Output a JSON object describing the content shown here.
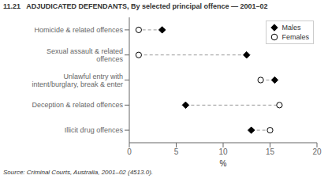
{
  "chart_data": {
    "type": "dumbbell",
    "title": "11.21   ADJUDICATED DEFENDANTS, By selected principal offence — 2001–02",
    "categories": [
      "Homicide & related offences",
      "Sexual assault & related offences",
      "Unlawful entry with intent/burglary, break & enter",
      "Deception & related offences",
      "Illicit drug offences"
    ],
    "series": [
      {
        "name": "Males",
        "values": [
          3.5,
          12.5,
          15.5,
          6.0,
          13.0
        ],
        "color": "black",
        "marker": "diamond"
      },
      {
        "name": "Females",
        "values": [
          1.0,
          1.0,
          14.0,
          16.0,
          15.0
        ],
        "color": "white",
        "marker": "circle"
      }
    ],
    "xlim": [
      0,
      20
    ],
    "xticks": [
      0,
      5,
      10,
      15,
      20
    ],
    "xlabel": "%",
    "source": "Source: Criminal Courts, Australia, 2001–02 (4513.0).",
    "color": "#999999",
    "line_style": "dashed",
    "legend": "upper right",
    "grid": false
  }
}
